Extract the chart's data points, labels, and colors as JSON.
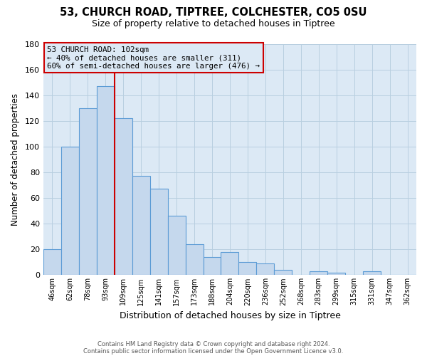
{
  "title": "53, CHURCH ROAD, TIPTREE, COLCHESTER, CO5 0SU",
  "subtitle": "Size of property relative to detached houses in Tiptree",
  "xlabel": "Distribution of detached houses by size in Tiptree",
  "ylabel": "Number of detached properties",
  "bar_labels": [
    "46sqm",
    "62sqm",
    "78sqm",
    "93sqm",
    "109sqm",
    "125sqm",
    "141sqm",
    "157sqm",
    "173sqm",
    "188sqm",
    "204sqm",
    "220sqm",
    "236sqm",
    "252sqm",
    "268sqm",
    "283sqm",
    "299sqm",
    "315sqm",
    "331sqm",
    "347sqm",
    "362sqm"
  ],
  "bar_values": [
    20,
    100,
    130,
    147,
    122,
    77,
    67,
    46,
    24,
    14,
    18,
    10,
    9,
    4,
    0,
    3,
    2,
    0,
    3,
    0,
    0
  ],
  "bar_color": "#c5d8ed",
  "bar_edge_color": "#5b9bd5",
  "grid_color": "#b8cfe0",
  "plot_background_color": "#dce9f5",
  "fig_background_color": "#ffffff",
  "annotation_box_text": "53 CHURCH ROAD: 102sqm\n← 40% of detached houses are smaller (311)\n60% of semi-detached houses are larger (476) →",
  "annotation_box_edge_color": "#cc0000",
  "red_line_x": 3.5,
  "ylim": [
    0,
    180
  ],
  "yticks": [
    0,
    20,
    40,
    60,
    80,
    100,
    120,
    140,
    160,
    180
  ],
  "footer_line1": "Contains HM Land Registry data © Crown copyright and database right 2024.",
  "footer_line2": "Contains public sector information licensed under the Open Government Licence v3.0."
}
